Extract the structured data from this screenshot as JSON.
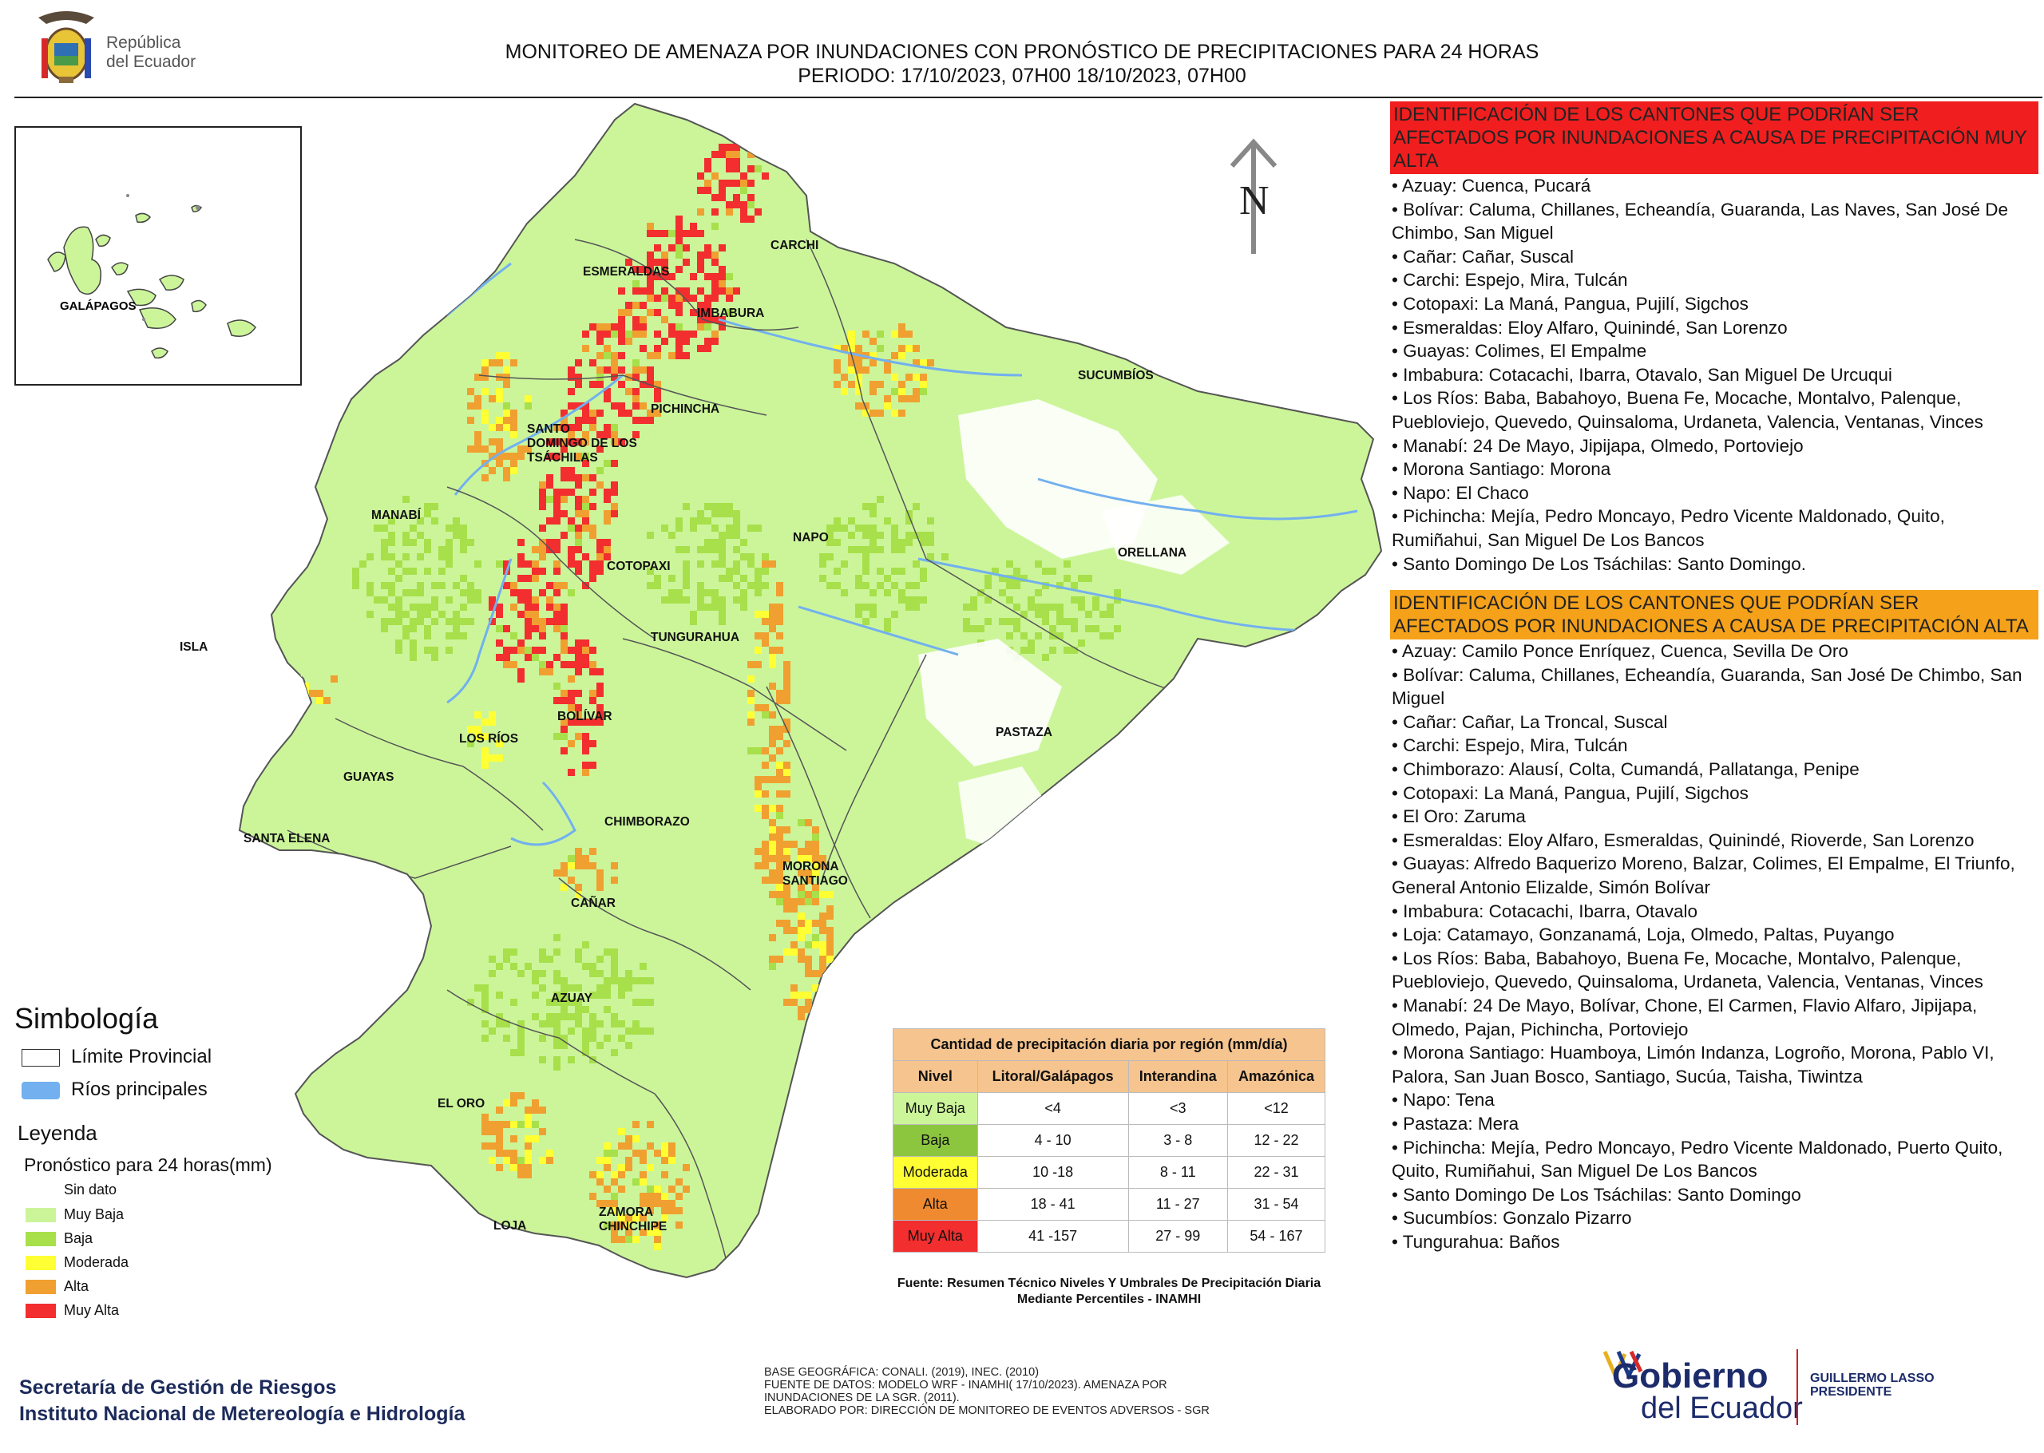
{
  "logo": {
    "line1": "República",
    "line2": "del Ecuador"
  },
  "header": {
    "title": "MONITOREO DE AMENAZA POR INUNDACIONES  CON PRONÓSTICO DE  PRECIPITACIONES PARA 24 HORAS",
    "period": "PERIODO: 17/10/2023, 07H00 18/10/2023, 07H00"
  },
  "map": {
    "north_label": "N",
    "inset_label": "GALÁPAGOS",
    "provinces": [
      "ESMERALDAS",
      "CARCHI",
      "IMBABURA",
      "SUCUMBÍOS",
      "PICHINCHA",
      "SANTO DOMINGO DE LOS TSÁCHILAS",
      "MANABÍ",
      "NAPO",
      "ORELLANA",
      "COTOPAXI",
      "ISLA",
      "TUNGURAHUA",
      "BOLÍVAR",
      "LOS RÍOS",
      "PASTAZA",
      "GUAYAS",
      "CHIMBORAZO",
      "SANTA ELENA",
      "MORONA SANTIAGO",
      "CAÑAR",
      "AZUAY",
      "EL ORO",
      "LOJA",
      "ZAMORA CHINCHIPE"
    ],
    "colors": {
      "sin_dato": "#ffffff",
      "muy_baja": "#ccf59a",
      "baja": "#a7e04a",
      "moderada": "#ffff33",
      "alta": "#f0a030",
      "muy_alta": "#f22e2e",
      "river": "#72b0ef"
    }
  },
  "legend": {
    "simbologia_title": "Simbología",
    "limite_label": "Límite Provincial",
    "rios_label": "Ríos principales",
    "leyenda_title": "Leyenda",
    "leyenda_sub": "Pronóstico para 24 horas(mm)",
    "levels": [
      "Sin dato",
      "Muy Baja",
      "Baja",
      "Moderada",
      "Alta",
      "Muy Alta"
    ]
  },
  "table": {
    "title": "Cantidad de precipitación diaria por región (mm/día)",
    "headers": [
      "Nivel",
      "Litoral/Galápagos",
      "Interandina",
      "Amazónica"
    ],
    "rows": [
      [
        "Muy Baja",
        "<4",
        "<3",
        "<12"
      ],
      [
        "Baja",
        "4 - 10",
        "3 - 8",
        "12 - 22"
      ],
      [
        "Moderada",
        "10 -18",
        "8 - 11",
        "22 - 31"
      ],
      [
        "Alta",
        "18 - 41",
        "11 - 27",
        "31 - 54"
      ],
      [
        "Muy Alta",
        "41 -157",
        "27 - 99",
        "54 - 167"
      ]
    ],
    "source": "Fuente: Resumen Técnico Niveles Y Umbrales De Precipitación Diaria Mediante Percentiles - INAMHI"
  },
  "muy_alta_section": {
    "heading": "IDENTIFICACIÓN DE LOS CANTONES QUE PODRÍAN SER AFECTADOS POR INUNDACIONES  A CAUSA DE PRECIPITACIÓN MUY ALTA",
    "items": [
      "• Azuay: Cuenca, Pucará",
      "• Bolívar: Caluma, Chillanes, Echeandía, Guaranda, Las Naves, San José De Chimbo, San Miguel",
      "• Cañar: Cañar, Suscal",
      "• Carchi: Espejo, Mira, Tulcán",
      "• Cotopaxi: La Maná, Pangua, Pujilí, Sigchos",
      "• Esmeraldas: Eloy Alfaro, Quinindé, San Lorenzo",
      "• Guayas: Colimes, El Empalme",
      "• Imbabura: Cotacachi, Ibarra, Otavalo, San Miguel De Urcuqui",
      "• Los Ríos: Baba, Babahoyo, Buena Fe, Mocache, Montalvo, Palenque, Puebloviejo, Quevedo, Quinsaloma, Urdaneta, Valencia, Ventanas, Vinces",
      "• Manabí: 24 De Mayo, Jipijapa, Olmedo, Portoviejo",
      "• Morona Santiago: Morona",
      "• Napo: El Chaco",
      "• Pichincha: Mejía, Pedro Moncayo, Pedro Vicente Maldonado, Quito, Rumiñahui, San Miguel De Los Bancos",
      "• Santo Domingo De Los Tsáchilas: Santo Domingo."
    ]
  },
  "alta_section": {
    "heading": "IDENTIFICACIÓN DE LOS CANTONES QUE  PODRÍAN SER AFECTADOS POR INUNDACIONES  A CAUSA DE PRECIPITACIÓN ALTA",
    "items": [
      "• Azuay: Camilo Ponce Enríquez, Cuenca, Sevilla De Oro",
      "• Bolívar: Caluma, Chillanes, Echeandía, Guaranda, San José De Chimbo, San Miguel",
      "• Cañar: Cañar, La Troncal, Suscal",
      "• Carchi: Espejo, Mira, Tulcán",
      "• Chimborazo: Alausí, Colta, Cumandá, Pallatanga, Penipe",
      "• Cotopaxi: La Maná, Pangua, Pujilí, Sigchos",
      "• El Oro: Zaruma",
      "• Esmeraldas: Eloy Alfaro, Esmeraldas, Quinindé, Rioverde, San Lorenzo",
      "• Guayas: Alfredo Baquerizo Moreno, Balzar, Colimes, El Empalme, El Triunfo, General Antonio Elizalde, Simón Bolívar",
      "• Imbabura: Cotacachi, Ibarra, Otavalo",
      "• Loja: Catamayo, Gonzanamá, Loja, Olmedo, Paltas, Puyango",
      "• Los Ríos: Baba, Babahoyo, Buena Fe, Mocache, Montalvo, Palenque, Puebloviejo, Quevedo, Quinsaloma, Urdaneta, Valencia, Ventanas, Vinces",
      "• Manabí: 24 De Mayo, Bolívar, Chone, El Carmen, Flavio Alfaro, Jipijapa, Olmedo, Pajan, Pichincha, Portoviejo",
      "• Morona Santiago: Huamboya, Limón Indanza, Logroño, Morona, Pablo VI, Palora, San Juan Bosco, Santiago, Sucúa, Taisha, Tiwintza",
      "• Napo: Tena",
      "• Pastaza: Mera",
      "• Pichincha: Mejía, Pedro Moncayo, Pedro Vicente Maldonado, Puerto Quito, Quito, Rumiñahui, San Miguel De Los Bancos",
      "• Santo Domingo De Los Tsáchilas: Santo Domingo",
      "• Sucumbíos: Gonzalo Pizarro",
      "• Tungurahua: Baños"
    ]
  },
  "footer": {
    "org_line1": "Secretaría de Gestión de Riesgos",
    "org_line2": "Instituto Nacional de Metereología e Hidrología",
    "notes": [
      "BASE GEOGRÁFICA: CONALI. (2019), INEC. (2010)",
      "FUENTE DE DATOS: MODELO WRF - INAMHI( 17/10/2023).  AMENAZA POR",
      "INUNDACIONES DE LA SGR. (2011).",
      "ELABORADO POR: DIRECCIÓN DE MONITOREO DE EVENTOS ADVERSOS - SGR"
    ],
    "gov_line1": "Gobierno",
    "gov_line2": "del Ecuador",
    "president_name": "GUILLERMO LASSO",
    "president_title": "PRESIDENTE"
  }
}
